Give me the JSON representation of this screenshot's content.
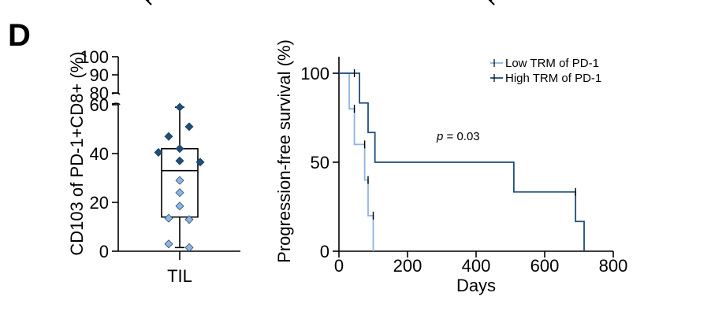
{
  "panel_label": "D",
  "colors": {
    "low": "#8db4e2",
    "high": "#1f4e79",
    "diamond_dark": "#1f4e79",
    "diamond_light": "#8db4e2"
  },
  "chart_data": [
    {
      "type": "box",
      "ylabel": "CD103 of PD-1+CD8+ (%)",
      "category": "TIL",
      "y_ticks_lower": [
        "0",
        "20",
        "40",
        "60"
      ],
      "y_ticks_upper": [
        "80",
        "90",
        "100"
      ],
      "axis_break": true,
      "box": {
        "min": 1.5,
        "q1": 14,
        "median": 33,
        "q3": 42,
        "max": 59
      },
      "points": [
        {
          "y": 59,
          "group": "dark"
        },
        {
          "y": 51,
          "group": "dark"
        },
        {
          "y": 47,
          "group": "dark"
        },
        {
          "y": 42,
          "group": "dark"
        },
        {
          "y": 40.5,
          "group": "dark"
        },
        {
          "y": 37,
          "group": "dark"
        },
        {
          "y": 36.5,
          "group": "dark"
        },
        {
          "y": 29,
          "group": "light"
        },
        {
          "y": 24,
          "group": "light"
        },
        {
          "y": 18.5,
          "group": "light"
        },
        {
          "y": 13.5,
          "group": "light"
        },
        {
          "y": 13,
          "group": "light"
        },
        {
          "y": 3,
          "group": "light"
        },
        {
          "y": 1.5,
          "group": "light"
        }
      ]
    },
    {
      "type": "line",
      "subtype": "kaplan-meier",
      "xlabel": "Days",
      "ylabel": "Progression-free survival (%)",
      "xlim": [
        0,
        800
      ],
      "ylim": [
        0,
        100
      ],
      "x_ticks": [
        "0",
        "200",
        "400",
        "600",
        "800"
      ],
      "y_ticks": [
        "0",
        "50",
        "100"
      ],
      "annotation_p": "p",
      "annotation_value": " = 0.03",
      "legend_position": "top-right",
      "series": [
        {
          "name": "Low TRM of PD-1",
          "color_key": "low",
          "steps": [
            [
              0,
              100
            ],
            [
              30,
              80
            ],
            [
              45,
              60
            ],
            [
              75,
              40
            ],
            [
              85,
              20
            ],
            [
              100,
              0
            ]
          ],
          "censors": [
            [
              45,
              80
            ],
            [
              75,
              60
            ],
            [
              85,
              40
            ],
            [
              100,
              20
            ]
          ]
        },
        {
          "name": "High TRM of PD-1",
          "color_key": "high",
          "steps": [
            [
              0,
              100
            ],
            [
              60,
              83.3
            ],
            [
              85,
              66.7
            ],
            [
              105,
              50
            ],
            [
              510,
              33.3
            ],
            [
              690,
              16.7
            ],
            [
              715,
              0
            ]
          ],
          "censors": [
            [
              45,
              100
            ],
            [
              690,
              33.3
            ]
          ]
        }
      ]
    }
  ]
}
